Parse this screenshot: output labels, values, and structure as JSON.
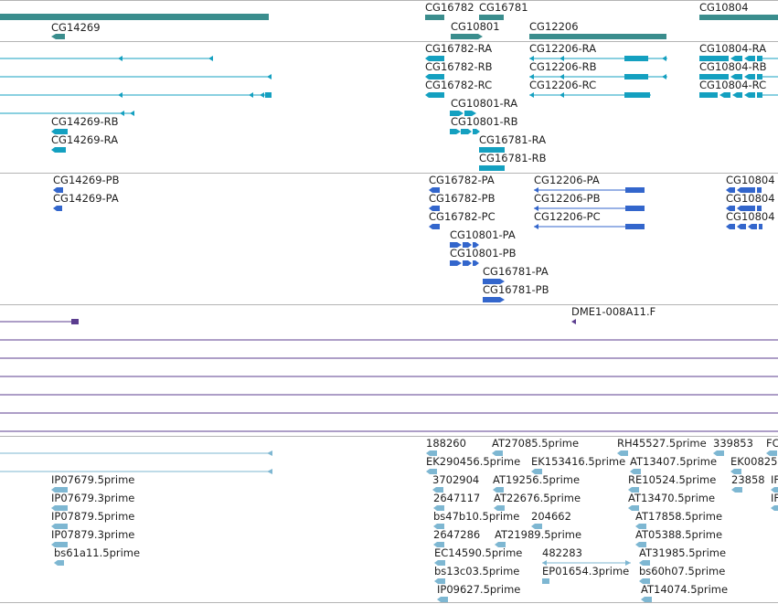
{
  "colors": {
    "genes": "#3a8d8d",
    "transcripts": "#14a0c0",
    "proteins": "#3366cc",
    "clones": "#5b3d8f",
    "ests": "#7eb7d2",
    "separator": "#b4b4b4"
  },
  "tracks": {
    "genes": {
      "items": [
        {
          "label": "CG14269",
          "name": "gene-cg14269"
        },
        {
          "label": "CG16782",
          "name": "gene-cg16782"
        },
        {
          "label": "CG16781",
          "name": "gene-cg16781"
        },
        {
          "label": "CG10801",
          "name": "gene-cg10801"
        },
        {
          "label": "CG12206",
          "name": "gene-cg12206"
        },
        {
          "label": "CG10804",
          "name": "gene-cg10804"
        }
      ]
    },
    "transcripts": {
      "items": [
        {
          "label": "CG14269-RB"
        },
        {
          "label": "CG14269-RA"
        },
        {
          "label": "CG16782-RA"
        },
        {
          "label": "CG16782-RB"
        },
        {
          "label": "CG16782-RC"
        },
        {
          "label": "CG10801-RA"
        },
        {
          "label": "CG10801-RB"
        },
        {
          "label": "CG16781-RA"
        },
        {
          "label": "CG16781-RB"
        },
        {
          "label": "CG12206-RA"
        },
        {
          "label": "CG12206-RB"
        },
        {
          "label": "CG12206-RC"
        },
        {
          "label": "CG10804-RA"
        },
        {
          "label": "CG10804-RB"
        },
        {
          "label": "CG10804-RC"
        }
      ]
    },
    "proteins": {
      "items": [
        {
          "label": "CG14269-PB"
        },
        {
          "label": "CG14269-PA"
        },
        {
          "label": "CG16782-PA"
        },
        {
          "label": "CG16782-PB"
        },
        {
          "label": "CG16782-PC"
        },
        {
          "label": "CG10801-PA"
        },
        {
          "label": "CG10801-PB"
        },
        {
          "label": "CG16781-PA"
        },
        {
          "label": "CG16781-PB"
        },
        {
          "label": "CG12206-PA"
        },
        {
          "label": "CG12206-PB"
        },
        {
          "label": "CG12206-PC"
        },
        {
          "label": "CG10804"
        },
        {
          "label": "CG10804"
        },
        {
          "label": "CG10804"
        }
      ]
    },
    "clones": {
      "items": [
        {
          "label": "DME1-008A11.F"
        }
      ]
    },
    "ests": {
      "items": [
        {
          "label": "IP07679.5prime"
        },
        {
          "label": "IP07679.3prime"
        },
        {
          "label": "IP07879.5prime"
        },
        {
          "label": "IP07879.3prime"
        },
        {
          "label": "bs61a11.5prime"
        },
        {
          "label": "188260"
        },
        {
          "label": "EK290456.5prime"
        },
        {
          "label": "3702904"
        },
        {
          "label": "2647117"
        },
        {
          "label": "bs47b10.5prime"
        },
        {
          "label": "2647286"
        },
        {
          "label": "EC14590.5prime"
        },
        {
          "label": "bs13c03.5prime"
        },
        {
          "label": "IP09627.5prime"
        },
        {
          "label": "AT27085.5prime"
        },
        {
          "label": "EK153416.5prime"
        },
        {
          "label": "AT19256.5prime"
        },
        {
          "label": "AT22676.5prime"
        },
        {
          "label": "204662"
        },
        {
          "label": "AT21989.5prime"
        },
        {
          "label": "482283"
        },
        {
          "label": "EP01654.3prime"
        },
        {
          "label": "RH45527.5prime"
        },
        {
          "label": "AT13407.5prime"
        },
        {
          "label": "RE10524.5prime"
        },
        {
          "label": "AT13470.5prime"
        },
        {
          "label": "AT17858.5prime"
        },
        {
          "label": "AT05388.5prime"
        },
        {
          "label": "AT31985.5prime"
        },
        {
          "label": "bs60h07.5prime"
        },
        {
          "label": "AT14074.5prime"
        },
        {
          "label": "339853"
        },
        {
          "label": "EK00825"
        },
        {
          "label": "23858"
        },
        {
          "label": "FC"
        },
        {
          "label": "IF"
        },
        {
          "label": "IF"
        }
      ]
    }
  }
}
